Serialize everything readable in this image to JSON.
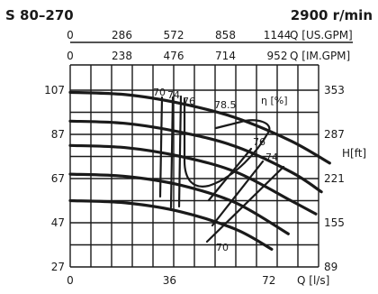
{
  "chart_data": {
    "type": "line",
    "model": "S 80–270",
    "speed": "2900 r/min",
    "x_unit": "Q [l/s]",
    "x_ticks": [
      "0",
      "36",
      "72"
    ],
    "x_range": [
      0,
      90
    ],
    "x_us_gpm_unit": "Q [US.GPM]",
    "x_us_gpm_ticks": [
      "0",
      "286",
      "572",
      "858",
      "1144"
    ],
    "x_im_gpm_unit": "Q [IM.GPM]",
    "x_im_gpm_ticks": [
      "0",
      "238",
      "476",
      "714",
      "952"
    ],
    "y_ticks_m": [
      "107",
      "87",
      "67",
      "47",
      "27"
    ],
    "y_range_m": [
      27,
      107
    ],
    "y_unit_ft": "H[ft]",
    "y_ticks_ft": [
      "353",
      "287",
      "221",
      "155",
      "89"
    ],
    "grid": true,
    "efficiency_unit": "η [%]",
    "efficiency_labels": [
      "70",
      "74",
      "76",
      "78.5",
      "76",
      "74",
      "70"
    ],
    "series": [
      {
        "x": [
          0,
          20,
          40,
          60,
          80,
          94
        ],
        "y": [
          106,
          105,
          101,
          94.5,
          84,
          74
        ]
      },
      {
        "x": [
          0,
          20,
          40,
          60,
          80,
          91
        ],
        "y": [
          93,
          92,
          88,
          81.5,
          70,
          61
        ]
      },
      {
        "x": [
          0,
          20,
          40,
          60,
          80,
          89
        ],
        "y": [
          82,
          81,
          77,
          70,
          57,
          51
        ]
      },
      {
        "x": [
          0,
          20,
          40,
          60,
          79
        ],
        "y": [
          69,
          68,
          64,
          56,
          42
        ]
      },
      {
        "x": [
          0,
          20,
          40,
          60,
          73
        ],
        "y": [
          57,
          56,
          52,
          44,
          35
        ]
      }
    ]
  }
}
